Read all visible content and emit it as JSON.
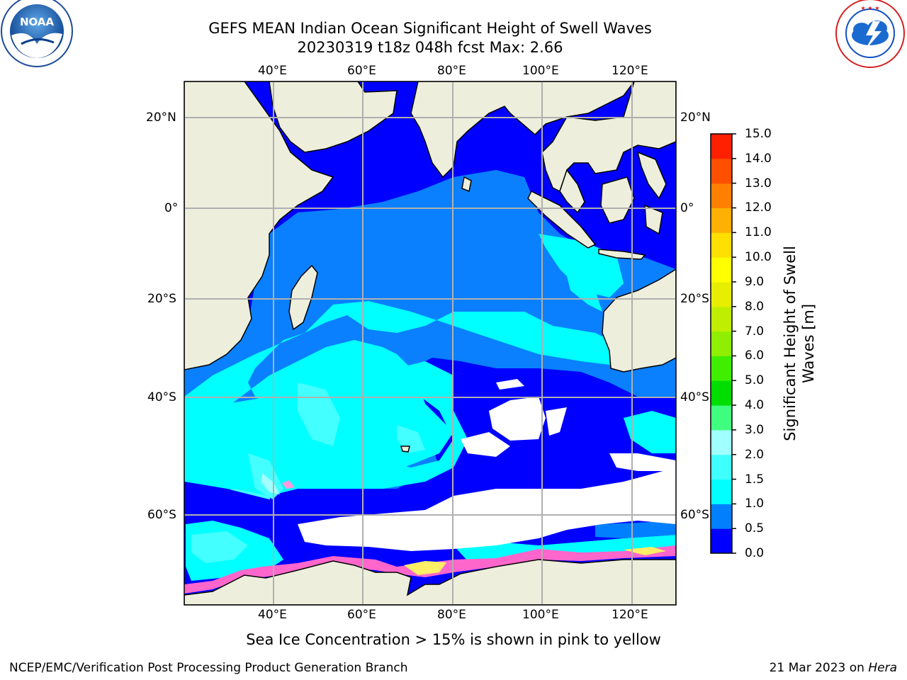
{
  "title": {
    "line1": "GEFS MEAN Indian Ocean Significant Height of Swell Waves",
    "line2": "20230319 t18z 048h fcst   Max: 2.66"
  },
  "logos": {
    "left": {
      "name": "NOAA",
      "text": "NOAA",
      "ring_text": "NATIONAL OCEANIC AND ATMOSPHERIC ADMINISTRATION · U.S. DEPARTMENT OF COMMERCE"
    },
    "right": {
      "name": "National Weather Service",
      "ring_text": "NATIONAL WEATHER SERVICE"
    }
  },
  "map": {
    "lon_ticks_top": [
      "40°E",
      "60°E",
      "80°E",
      "100°E",
      "120°E"
    ],
    "lon_ticks_bottom": [
      "40°E",
      "60°E",
      "80°E",
      "100°E",
      "120°E"
    ],
    "lat_ticks_left": [
      "20°N",
      "0°",
      "20°S",
      "40°S",
      "60°S"
    ],
    "lat_ticks_right": [
      "20°N",
      "0°",
      "20°S",
      "40°S",
      "60°S"
    ],
    "colors": {
      "land": "#eeeedd",
      "grid": "#b0b0b0",
      "sea_ice_free": "#ffffff"
    }
  },
  "colorbar": {
    "label_line1": "Significant Height of Swell",
    "label_line2": "Waves [m]",
    "ticks": [
      "0.0",
      "0.5",
      "1.0",
      "1.5",
      "2.0",
      "3.0",
      "4.0",
      "5.0",
      "6.0",
      "7.0",
      "8.0",
      "9.0",
      "10.0",
      "11.0",
      "12.0",
      "13.0",
      "14.0",
      "15.0"
    ],
    "colors": [
      "#0000ff",
      "#0080ff",
      "#00ffff",
      "#40ffff",
      "#a0ffff",
      "#40ff80",
      "#00dd00",
      "#40ee00",
      "#90ee00",
      "#c0ee00",
      "#e8ee00",
      "#ffff00",
      "#ffe000",
      "#ffb000",
      "#ff8000",
      "#ff5000",
      "#ff2000"
    ]
  },
  "caption": "Sea Ice Concentration > 15% is shown in pink to yellow",
  "footer": {
    "left": "NCEP/EMC/Verification Post Processing Product Generation Branch",
    "right_prefix": "21 Mar 2023 on",
    "right_host": "Hera"
  }
}
